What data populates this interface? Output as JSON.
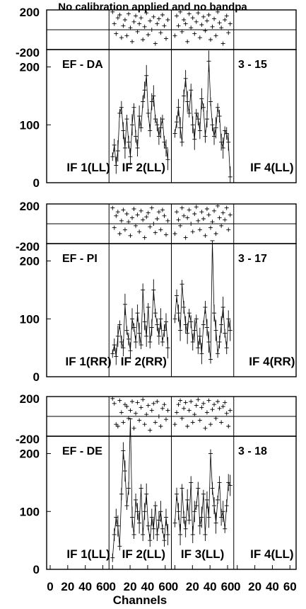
{
  "title": "No calibration applied and no bandpa",
  "xlabel": "Channels",
  "x_tick_labels": [
    "0",
    "20",
    "40",
    "60"
  ],
  "chart_data": [
    {
      "type": "line",
      "baseline": "EF - DA",
      "scan": "3 - 15",
      "phase_ticks": [
        "200",
        "-200"
      ],
      "amp_ticks": [
        "200",
        "100",
        "0"
      ],
      "phase_ylim": [
        -200,
        200
      ],
      "amp_ylim": [
        0,
        230
      ],
      "if_labels": [
        "IF 1(LL)",
        "IF 2(LL)",
        "",
        "IF 4(LL)"
      ],
      "series": [
        {
          "if": 1,
          "phase": [],
          "amp": []
        },
        {
          "if": 2,
          "phase": [
            180,
            60,
            -40,
            120,
            150,
            -80,
            40,
            100,
            -60,
            160,
            20,
            -120,
            80,
            140,
            -20,
            60,
            120,
            -100,
            30,
            170,
            -50,
            90,
            0,
            130,
            -140,
            60,
            110,
            -30,
            150,
            40,
            -90,
            100
          ],
          "amp": [
            45,
            65,
            30,
            55,
            120,
            130,
            90,
            60,
            110,
            70,
            45,
            100,
            130,
            80,
            60,
            115,
            95,
            140,
            160,
            185,
            120,
            90,
            140,
            150,
            110,
            100,
            80,
            95,
            110,
            70,
            60,
            40
          ]
        },
        {
          "if": 3,
          "phase": [
            -60,
            140,
            40,
            180,
            -20,
            100,
            60,
            -120,
            160,
            20,
            120,
            -40,
            80,
            170,
            -80,
            50,
            130,
            -10,
            90,
            150,
            -100,
            30,
            110,
            -60,
            180,
            70,
            20,
            -140,
            100,
            140,
            -30,
            60
          ],
          "amp": [
            85,
            105,
            130,
            95,
            70,
            150,
            180,
            140,
            120,
            160,
            100,
            75,
            120,
            110,
            90,
            145,
            130,
            80,
            110,
            210,
            140,
            100,
            80,
            95,
            130,
            115,
            70,
            60,
            90,
            85,
            70,
            10
          ]
        },
        {
          "if": 4,
          "phase": [],
          "amp": []
        }
      ]
    },
    {
      "type": "line",
      "baseline": "EF - PI",
      "scan": "3 - 17",
      "phase_ticks": [
        "200",
        "-200"
      ],
      "amp_ticks": [
        "200",
        "100",
        "0"
      ],
      "phase_ylim": [
        -200,
        200
      ],
      "amp_ylim": [
        0,
        230
      ],
      "if_labels": [
        "IF 1(RR)",
        "IF 2(RR)",
        "",
        "IF 4(RR)"
      ],
      "series": [
        {
          "if": 1,
          "phase": [],
          "amp": []
        },
        {
          "if": 2,
          "phase": [
            160,
            -40,
            80,
            120,
            -100,
            30,
            140,
            -60,
            100,
            20,
            -120,
            60,
            150,
            -20,
            90,
            -80,
            130,
            40,
            -140,
            70,
            110,
            -30,
            160,
            0,
            -90,
            50,
            120,
            -60,
            140,
            80,
            -110,
            30
          ],
          "amp": [
            40,
            55,
            35,
            70,
            90,
            60,
            50,
            125,
            80,
            65,
            45,
            100,
            85,
            60,
            110,
            75,
            55,
            150,
            95,
            70,
            120,
            60,
            85,
            150,
            110,
            90,
            70,
            100,
            60,
            80,
            95,
            50
          ]
        },
        {
          "if": 3,
          "phase": [
            -100,
            120,
            40,
            -20,
            160,
            80,
            -140,
            60,
            140,
            0,
            -80,
            100,
            170,
            30,
            -60,
            120,
            50,
            -120,
            150,
            90,
            -40,
            20,
            130,
            -100,
            180,
            60,
            -20,
            110,
            40,
            160,
            -60,
            90
          ],
          "amp": [
            100,
            140,
            110,
            80,
            160,
            120,
            90,
            75,
            110,
            95,
            60,
            80,
            100,
            50,
            70,
            40,
            90,
            120,
            85,
            60,
            30,
            235,
            110,
            80,
            40,
            60,
            90,
            120,
            75,
            50,
            100,
            80
          ]
        },
        {
          "if": 4,
          "phase": [],
          "amp": []
        }
      ]
    },
    {
      "type": "line",
      "baseline": "EF - DE",
      "scan": "3 - 18",
      "phase_ticks": [
        "200",
        "-200"
      ],
      "amp_ticks": [
        "200",
        "100",
        "0"
      ],
      "phase_ylim": [
        -200,
        200
      ],
      "amp_ylim": [
        0,
        230
      ],
      "if_labels": [
        "IF 1(LL)",
        "IF 2(LL)",
        "IF 3(LL)",
        "IF 4(LL)"
      ],
      "series": [
        {
          "if": 1,
          "phase": [],
          "amp": []
        },
        {
          "if": 2,
          "phase": [
            180,
            130,
            -80,
            -100,
            160,
            40,
            -60,
            120,
            100,
            -20,
            60,
            150,
            -120,
            30,
            140,
            -40,
            90,
            170,
            -80,
            20,
            110,
            -140,
            60,
            130,
            -60,
            150,
            0,
            -100,
            80,
            120,
            -30,
            60
          ],
          "amp": [
            20,
            60,
            90,
            75,
            40,
            130,
            205,
            170,
            110,
            140,
            260,
            90,
            60,
            120,
            100,
            80,
            140,
            60,
            100,
            130,
            75,
            50,
            90,
            70,
            110,
            60,
            85,
            100,
            70,
            50,
            90,
            60
          ]
        },
        {
          "if": 3,
          "phase": [
            -80,
            40,
            120,
            160,
            -20,
            80,
            140,
            -100,
            60,
            150,
            -60,
            20,
            110,
            170,
            -40,
            90,
            130,
            -120,
            40,
            160,
            -80,
            70,
            120,
            -20,
            150,
            80,
            -60,
            100,
            140,
            30,
            -100,
            60
          ],
          "amp": [
            80,
            130,
            100,
            60,
            140,
            90,
            70,
            120,
            85,
            150,
            60,
            100,
            110,
            140,
            75,
            90,
            130,
            60,
            120,
            90,
            200,
            140,
            110,
            80,
            120,
            150,
            90,
            100,
            70,
            110,
            150,
            145
          ]
        },
        {
          "if": 4,
          "phase": [],
          "amp": []
        }
      ]
    }
  ]
}
